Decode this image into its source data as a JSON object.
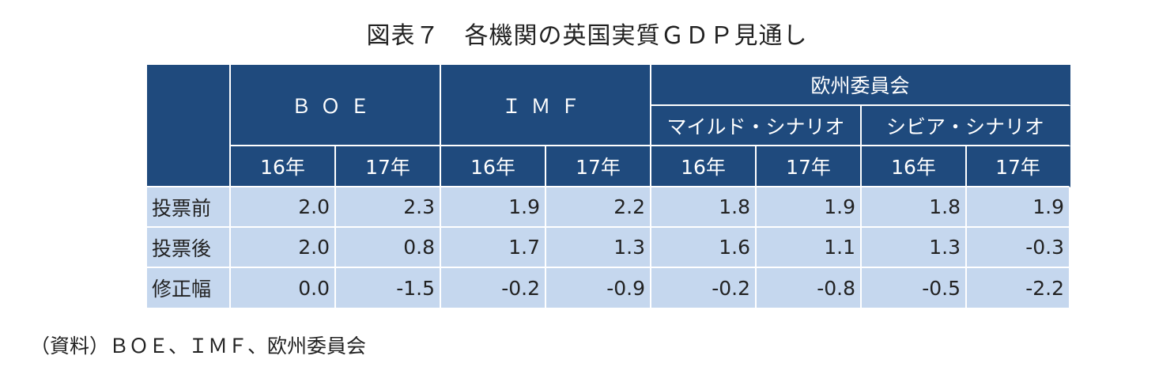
{
  "title": "図表７　各機関の英国実質ＧＤＰ見通し",
  "header": {
    "boe": "ＢＯＥ",
    "imf": "ＩＭＦ",
    "ec": "欧州委員会",
    "mild": "マイルド・シナリオ",
    "severe": "シビア・シナリオ",
    "years": [
      "16年",
      "17年",
      "16年",
      "17年",
      "16年",
      "17年",
      "16年",
      "17年"
    ]
  },
  "rows": [
    {
      "label": "投票前",
      "values": [
        "2.0",
        "2.3",
        "1.9",
        "2.2",
        "1.8",
        "1.9",
        "1.8",
        "1.9"
      ]
    },
    {
      "label": "投票後",
      "values": [
        "2.0",
        "0.8",
        "1.7",
        "1.3",
        "1.6",
        "1.1",
        "1.3",
        "-0.3"
      ]
    },
    {
      "label": "修正幅",
      "values": [
        "0.0",
        "-1.5",
        "-0.2",
        "-0.9",
        "-0.2",
        "-0.8",
        "-0.5",
        "-2.2"
      ]
    }
  ],
  "source": "（資料）ＢＯＥ、ＩＭＦ、欧州委員会",
  "colors": {
    "header_bg": "#1f4a7d",
    "body_bg": "#c5d7ee"
  }
}
